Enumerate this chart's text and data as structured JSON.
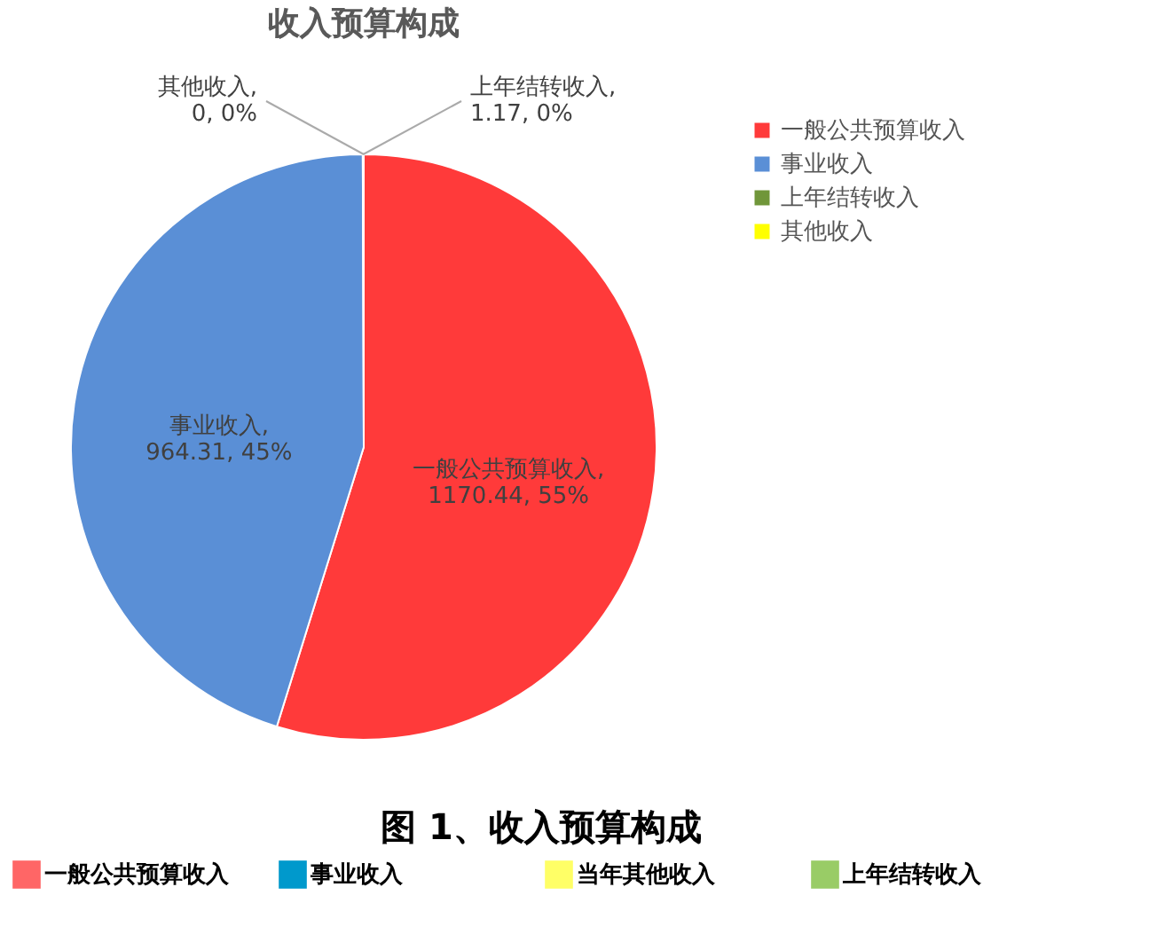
{
  "chart_data": [
    {
      "type": "pie",
      "title": "收入预算构成",
      "categories": [
        "一般公共预算收入",
        "事业收入",
        "上年结转收入",
        "其他收入"
      ],
      "values": [
        1170.44,
        964.31,
        1.17,
        0
      ],
      "colors": [
        "#ff3a3a",
        "#5a8fd6",
        "#70963a",
        "#ffff00"
      ],
      "value_labels": [
        "一般公共预算收入, 1170.44, 55%",
        "事业收入, 964.31, 45%",
        "上年结转收入, 1.17, 0%",
        "其他收入, 0, 0%"
      ],
      "legend": "right"
    },
    {
      "type": "other",
      "title": "图 1、收入预算构成",
      "categories": [
        "一般公共预算收入",
        "事业收入",
        "当年其他收入",
        "上年结转收入"
      ],
      "colors": [
        "#ff6666",
        "#0099cc",
        "#ffff66",
        "#99cc66"
      ]
    }
  ]
}
